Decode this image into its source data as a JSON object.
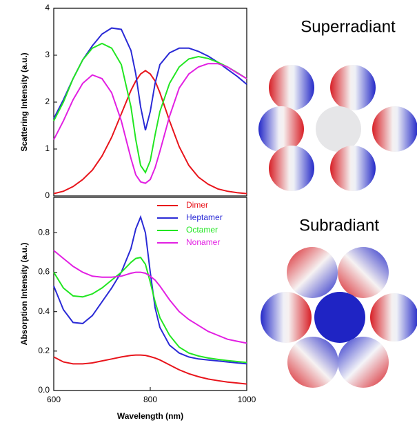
{
  "chart_data": [
    {
      "type": "line",
      "ylabel": "Scattering Intensity (a.u.)",
      "x": [
        600,
        620,
        640,
        660,
        680,
        700,
        720,
        740,
        760,
        770,
        780,
        790,
        800,
        810,
        820,
        840,
        860,
        880,
        900,
        920,
        940,
        960,
        980,
        1000
      ],
      "xlim": [
        600,
        1000
      ],
      "ylim": [
        0,
        4
      ],
      "yticks": [
        0,
        1,
        2,
        3,
        4
      ],
      "series": [
        {
          "color": "#e8141b",
          "values": [
            0.05,
            0.1,
            0.2,
            0.35,
            0.55,
            0.85,
            1.25,
            1.75,
            2.25,
            2.45,
            2.6,
            2.67,
            2.6,
            2.45,
            2.2,
            1.6,
            1.05,
            0.65,
            0.4,
            0.25,
            0.15,
            0.1,
            0.07,
            0.05
          ]
        },
        {
          "color": "#2a2ad6",
          "values": [
            1.65,
            2.05,
            2.5,
            2.9,
            3.2,
            3.45,
            3.58,
            3.55,
            3.1,
            2.6,
            1.9,
            1.4,
            1.8,
            2.4,
            2.8,
            3.05,
            3.15,
            3.15,
            3.08,
            2.98,
            2.85,
            2.7,
            2.55,
            2.38
          ]
        },
        {
          "color": "#22e622",
          "values": [
            1.6,
            2.0,
            2.5,
            2.9,
            3.15,
            3.25,
            3.15,
            2.8,
            1.9,
            1.2,
            0.65,
            0.5,
            0.75,
            1.3,
            1.8,
            2.4,
            2.75,
            2.92,
            2.97,
            2.93,
            2.85,
            2.75,
            2.63,
            2.5
          ]
        },
        {
          "color": "#e21fe2",
          "values": [
            1.2,
            1.6,
            2.05,
            2.4,
            2.58,
            2.5,
            2.2,
            1.6,
            0.8,
            0.45,
            0.3,
            0.27,
            0.35,
            0.6,
            0.95,
            1.7,
            2.3,
            2.6,
            2.75,
            2.82,
            2.82,
            2.75,
            2.62,
            2.5
          ]
        }
      ]
    },
    {
      "type": "line",
      "ylabel": "Absorption Intensity (a.u.)",
      "xlabel": "Wavelength (nm)",
      "x": [
        600,
        620,
        640,
        660,
        680,
        700,
        720,
        740,
        760,
        770,
        780,
        790,
        800,
        810,
        820,
        840,
        860,
        880,
        900,
        920,
        940,
        960,
        980,
        1000
      ],
      "xlim": [
        600,
        1000
      ],
      "xticks": [
        600,
        800,
        1000
      ],
      "ylim": [
        0,
        0.98
      ],
      "yticks": [
        {
          "value": 0,
          "label": "0.0"
        },
        0.2,
        0.4,
        0.6,
        0.8
      ],
      "legend": true,
      "series": [
        {
          "name": "Dimer",
          "color": "#e8141b",
          "values": [
            0.17,
            0.145,
            0.135,
            0.135,
            0.14,
            0.15,
            0.16,
            0.17,
            0.178,
            0.18,
            0.18,
            0.178,
            0.172,
            0.165,
            0.155,
            0.13,
            0.105,
            0.085,
            0.07,
            0.058,
            0.05,
            0.043,
            0.038,
            0.033
          ]
        },
        {
          "name": "Heptamer",
          "color": "#2a2ad6",
          "values": [
            0.53,
            0.41,
            0.345,
            0.34,
            0.38,
            0.45,
            0.52,
            0.6,
            0.72,
            0.82,
            0.88,
            0.8,
            0.6,
            0.42,
            0.32,
            0.23,
            0.19,
            0.17,
            0.16,
            0.155,
            0.15,
            0.145,
            0.14,
            0.135
          ]
        },
        {
          "name": "Octamer",
          "color": "#22e622",
          "values": [
            0.6,
            0.52,
            0.48,
            0.475,
            0.49,
            0.52,
            0.56,
            0.6,
            0.65,
            0.67,
            0.675,
            0.64,
            0.55,
            0.45,
            0.37,
            0.28,
            0.22,
            0.19,
            0.175,
            0.165,
            0.158,
            0.152,
            0.147,
            0.142
          ]
        },
        {
          "name": "Nonamer",
          "color": "#e21fe2",
          "values": [
            0.71,
            0.67,
            0.63,
            0.6,
            0.58,
            0.575,
            0.575,
            0.58,
            0.595,
            0.6,
            0.6,
            0.595,
            0.58,
            0.56,
            0.53,
            0.46,
            0.4,
            0.36,
            0.33,
            0.3,
            0.28,
            0.26,
            0.25,
            0.24
          ]
        }
      ]
    }
  ],
  "diagrams": [
    {
      "title": "Superradiant"
    },
    {
      "title": "Subradiant"
    }
  ]
}
